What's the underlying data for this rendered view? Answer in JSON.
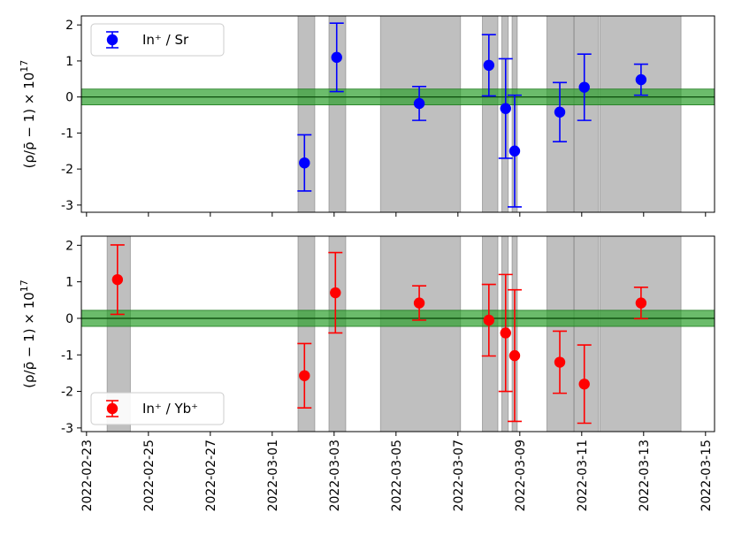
{
  "chart_data": [
    {
      "type": "scatter",
      "panel": "top",
      "ylabel": "(ρ/ρ̄ − 1) × 10",
      "ylabel_exp": "17",
      "ylim": [
        -3.2,
        2.25
      ],
      "yticks": [
        2,
        1,
        0,
        -1,
        -2,
        -3
      ],
      "ytick_labels": [
        "2",
        "1",
        "0",
        "-1",
        "-2",
        "-3"
      ],
      "band": {
        "center": 0,
        "half_width": 0.22,
        "color": "#2ca02c"
      },
      "shaded_intervals": [
        [
          "2022-03-01T20:00",
          "2022-03-02T09:00"
        ],
        [
          "2022-03-02T20:00",
          "2022-03-03T09:00"
        ],
        [
          "2022-03-04T12:00",
          "2022-03-07T02:00"
        ],
        [
          "2022-03-07T19:00",
          "2022-03-08T07:00"
        ],
        [
          "2022-03-08T10:00",
          "2022-03-08T15:00"
        ],
        [
          "2022-03-08T18:00",
          "2022-03-08T22:00"
        ],
        [
          "2022-03-09T21:00",
          "2022-03-10T18:00"
        ],
        [
          "2022-03-10T18:00",
          "2022-03-11T13:00"
        ],
        [
          "2022-03-11T14:00",
          "2022-03-14T05:00"
        ]
      ],
      "series": [
        {
          "name": "In⁺ / Sr",
          "label_main": "In",
          "label_rest": "/ Sr",
          "color": "#0000ff",
          "points": [
            {
              "t": "2022-03-02T01:00",
              "y": -1.83,
              "err": 0.78
            },
            {
              "t": "2022-03-03T02:00",
              "y": 1.1,
              "err": 0.95
            },
            {
              "t": "2022-03-05T18:00",
              "y": -0.18,
              "err": 0.47
            },
            {
              "t": "2022-03-08T00:00",
              "y": 0.88,
              "err": 0.85
            },
            {
              "t": "2022-03-08T13:00",
              "y": -0.32,
              "err": 1.38
            },
            {
              "t": "2022-03-08T20:00",
              "y": -1.5,
              "err": 1.55
            },
            {
              "t": "2022-03-10T07:00",
              "y": -0.42,
              "err": 0.82
            },
            {
              "t": "2022-03-11T02:00",
              "y": 0.27,
              "err": 0.92
            },
            {
              "t": "2022-03-12T22:00",
              "y": 0.48,
              "err": 0.43
            }
          ]
        }
      ],
      "legend_position": "upper-left"
    },
    {
      "type": "scatter",
      "panel": "bottom",
      "ylabel": "(ρ/ρ̄ − 1) × 10",
      "ylabel_exp": "17",
      "ylim": [
        -3.1,
        2.25
      ],
      "yticks": [
        2,
        1,
        0,
        -1,
        -2,
        -3
      ],
      "ytick_labels": [
        "2",
        "1",
        "0",
        "-1",
        "-2",
        "-3"
      ],
      "band": {
        "center": 0,
        "half_width": 0.22,
        "color": "#2ca02c"
      },
      "shaded_intervals": [
        [
          "2022-02-23T16:00",
          "2022-02-24T10:00"
        ],
        [
          "2022-03-01T20:00",
          "2022-03-02T09:00"
        ],
        [
          "2022-03-02T20:00",
          "2022-03-03T09:00"
        ],
        [
          "2022-03-04T12:00",
          "2022-03-07T02:00"
        ],
        [
          "2022-03-07T19:00",
          "2022-03-08T07:00"
        ],
        [
          "2022-03-08T10:00",
          "2022-03-08T15:00"
        ],
        [
          "2022-03-08T18:00",
          "2022-03-08T22:00"
        ],
        [
          "2022-03-09T21:00",
          "2022-03-10T18:00"
        ],
        [
          "2022-03-10T18:00",
          "2022-03-11T13:00"
        ],
        [
          "2022-03-11T14:00",
          "2022-03-14T05:00"
        ]
      ],
      "series": [
        {
          "name": "In⁺ / Yb⁺",
          "label_main": "In",
          "label_rest": "/ Yb",
          "color": "#ff0000",
          "points": [
            {
              "t": "2022-02-24T00:00",
              "y": 1.06,
              "err": 0.95
            },
            {
              "t": "2022-03-02T01:00",
              "y": -1.57,
              "err": 0.88
            },
            {
              "t": "2022-03-03T01:00",
              "y": 0.7,
              "err": 1.1
            },
            {
              "t": "2022-03-05T18:00",
              "y": 0.42,
              "err": 0.47
            },
            {
              "t": "2022-03-08T00:00",
              "y": -0.05,
              "err": 0.98
            },
            {
              "t": "2022-03-08T13:00",
              "y": -0.4,
              "err": 1.6
            },
            {
              "t": "2022-03-08T20:00",
              "y": -1.02,
              "err": 1.8
            },
            {
              "t": "2022-03-10T07:00",
              "y": -1.2,
              "err": 0.85
            },
            {
              "t": "2022-03-11T02:00",
              "y": -1.8,
              "err": 1.07
            },
            {
              "t": "2022-03-12T22:00",
              "y": 0.42,
              "err": 0.43
            }
          ]
        }
      ],
      "legend_position": "lower-left"
    }
  ],
  "x_axis": {
    "range": [
      "2022-02-22T20:00",
      "2022-03-15T07:00"
    ],
    "ticks": [
      "2022-02-23",
      "2022-02-25",
      "2022-02-27",
      "2022-03-01",
      "2022-03-03",
      "2022-03-05",
      "2022-03-07",
      "2022-03-09",
      "2022-03-11",
      "2022-03-13",
      "2022-03-15"
    ],
    "tick_labels": [
      "2022-02-23",
      "2022-02-25",
      "2022-02-27",
      "2022-03-01",
      "2022-03-03",
      "2022-03-05",
      "2022-03-07",
      "2022-03-09",
      "2022-03-11",
      "2022-03-13",
      "2022-03-15"
    ]
  }
}
